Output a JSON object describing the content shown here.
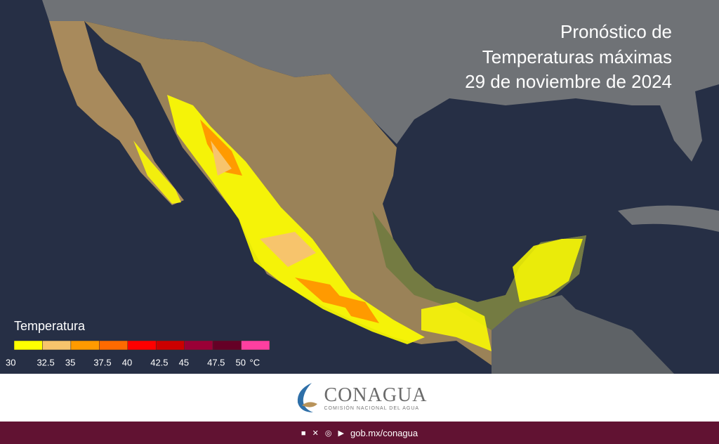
{
  "header": {
    "title_lines": [
      "Pronóstico de",
      "Temperaturas máximas",
      "29 de noviembre de 2024"
    ]
  },
  "legend": {
    "title": "Temperatura",
    "unit": "°C",
    "ticks": [
      30,
      32.5,
      35,
      37.5,
      40,
      42.5,
      45,
      47.5,
      50
    ],
    "colors": [
      "#ffff00",
      "#f7c46c",
      "#ff9a00",
      "#ff6a00",
      "#ff0000",
      "#cc0000",
      "#9a0036",
      "#650026",
      "#ff3fa0"
    ]
  },
  "logo": {
    "name": "CONAGUA",
    "subtitle": "COMISIÓN NACIONAL DEL AGUA"
  },
  "footer": {
    "link": "gob.mx/conagua"
  }
}
